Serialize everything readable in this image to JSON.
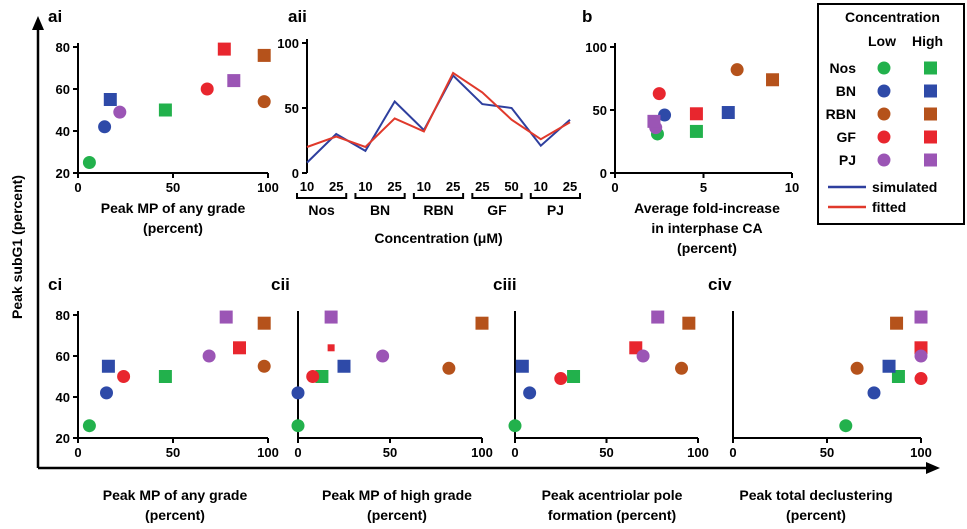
{
  "figure": {
    "ylabel": "Peak subG1 (percent)",
    "legend": {
      "title": "Concentration",
      "col_low": "Low",
      "col_high": "High",
      "drugs": [
        "Nos",
        "BN",
        "RBN",
        "GF",
        "PJ"
      ],
      "lines": [
        {
          "name": "simulated",
          "color": "#2e3f9e"
        },
        {
          "name": "fitted",
          "color": "#e0392b"
        }
      ]
    },
    "drug_colors": {
      "Nos": "#22b14c",
      "BN": "#2e4aa8",
      "RBN": "#b5521b",
      "GF": "#e8262e",
      "PJ": "#9b55b5"
    },
    "markers": {
      "low": "circle",
      "high": "square"
    }
  },
  "chart_data": [
    {
      "id": "ai",
      "panel_label": "ai",
      "type": "scatter",
      "xlabel_lines": [
        "Peak MP of any grade",
        "(percent)"
      ],
      "xlim": [
        0,
        100
      ],
      "ylim": [
        20,
        80
      ],
      "xticks": [
        0,
        50,
        100
      ],
      "yticks": [
        20,
        40,
        60,
        80
      ],
      "points": [
        {
          "drug": "Nos",
          "level": "low",
          "x": 6,
          "y": 25
        },
        {
          "drug": "Nos",
          "level": "high",
          "x": 46,
          "y": 50
        },
        {
          "drug": "BN",
          "level": "low",
          "x": 14,
          "y": 42
        },
        {
          "drug": "BN",
          "level": "high",
          "x": 17,
          "y": 55
        },
        {
          "drug": "RBN",
          "level": "low",
          "x": 98,
          "y": 54
        },
        {
          "drug": "RBN",
          "level": "high",
          "x": 98,
          "y": 76
        },
        {
          "drug": "GF",
          "level": "low",
          "x": 68,
          "y": 60
        },
        {
          "drug": "GF",
          "level": "high",
          "x": 77,
          "y": 79
        },
        {
          "drug": "PJ",
          "level": "low",
          "x": 22,
          "y": 49
        },
        {
          "drug": "PJ",
          "level": "high",
          "x": 82,
          "y": 64
        }
      ]
    },
    {
      "id": "aii",
      "panel_label": "aii",
      "type": "line",
      "xlabel": "Concentration (μM)",
      "ylim": [
        0,
        100
      ],
      "yticks": [
        0,
        50,
        100
      ],
      "categories": [
        "10",
        "25",
        "10",
        "25",
        "10",
        "25",
        "25",
        "50",
        "10",
        "25"
      ],
      "groups": [
        {
          "label": "Nos",
          "span": [
            0,
            1
          ]
        },
        {
          "label": "BN",
          "span": [
            2,
            3
          ]
        },
        {
          "label": "RBN",
          "span": [
            4,
            5
          ]
        },
        {
          "label": "GF",
          "span": [
            6,
            7
          ]
        },
        {
          "label": "PJ",
          "span": [
            8,
            9
          ]
        }
      ],
      "series": [
        {
          "name": "simulated",
          "color": "#2e3f9e",
          "values": [
            8,
            30,
            17,
            55,
            33,
            75,
            53,
            50,
            21,
            41
          ]
        },
        {
          "name": "fitted",
          "color": "#e0392b",
          "values": [
            20,
            28,
            20,
            42,
            32,
            77,
            62,
            41,
            26,
            39
          ]
        }
      ]
    },
    {
      "id": "b",
      "panel_label": "b",
      "type": "scatter",
      "xlabel_lines": [
        "Average fold-increase",
        "in interphase CA",
        "(percent)"
      ],
      "xlim": [
        0,
        10
      ],
      "ylim": [
        0,
        100
      ],
      "xticks": [
        0,
        5,
        10
      ],
      "yticks": [
        0,
        50,
        100
      ],
      "points": [
        {
          "drug": "Nos",
          "level": "low",
          "x": 2.4,
          "y": 31
        },
        {
          "drug": "Nos",
          "level": "high",
          "x": 4.6,
          "y": 33
        },
        {
          "drug": "BN",
          "level": "low",
          "x": 2.8,
          "y": 46
        },
        {
          "drug": "BN",
          "level": "high",
          "x": 6.4,
          "y": 48
        },
        {
          "drug": "RBN",
          "level": "low",
          "x": 6.9,
          "y": 82
        },
        {
          "drug": "RBN",
          "level": "high",
          "x": 8.9,
          "y": 74
        },
        {
          "drug": "GF",
          "level": "low",
          "x": 2.5,
          "y": 63
        },
        {
          "drug": "GF",
          "level": "high",
          "x": 4.6,
          "y": 47
        },
        {
          "drug": "PJ",
          "level": "low",
          "x": 2.3,
          "y": 36
        },
        {
          "drug": "PJ",
          "level": "high",
          "x": 2.2,
          "y": 41
        }
      ]
    },
    {
      "id": "ci",
      "panel_label": "ci",
      "type": "scatter",
      "xlabel_lines": [
        "Peak MP of any grade",
        "(percent)"
      ],
      "xlim": [
        0,
        100
      ],
      "ylim": [
        20,
        80
      ],
      "xticks": [
        0,
        50,
        100
      ],
      "yticks": [
        20,
        40,
        60,
        80
      ],
      "points": [
        {
          "drug": "Nos",
          "level": "low",
          "x": 6,
          "y": 26
        },
        {
          "drug": "Nos",
          "level": "high",
          "x": 46,
          "y": 50
        },
        {
          "drug": "BN",
          "level": "low",
          "x": 15,
          "y": 42
        },
        {
          "drug": "BN",
          "level": "high",
          "x": 16,
          "y": 55
        },
        {
          "drug": "RBN",
          "level": "low",
          "x": 98,
          "y": 55
        },
        {
          "drug": "RBN",
          "level": "high",
          "x": 98,
          "y": 76
        },
        {
          "drug": "GF",
          "level": "low",
          "x": 24,
          "y": 50
        },
        {
          "drug": "GF",
          "level": "high",
          "x": 85,
          "y": 64
        },
        {
          "drug": "PJ",
          "level": "low",
          "x": 69,
          "y": 60
        },
        {
          "drug": "PJ",
          "level": "high",
          "x": 78,
          "y": 79
        }
      ]
    },
    {
      "id": "cii",
      "panel_label": "cii",
      "type": "scatter",
      "xlabel_lines": [
        "Peak MP of high grade",
        "(percent)"
      ],
      "xlim": [
        0,
        100
      ],
      "ylim": [
        20,
        80
      ],
      "xticks": [
        0,
        50,
        100
      ],
      "points": [
        {
          "drug": "Nos",
          "level": "low",
          "x": 0,
          "y": 26
        },
        {
          "drug": "Nos",
          "level": "high",
          "x": 13,
          "y": 50
        },
        {
          "drug": "BN",
          "level": "low",
          "x": 0,
          "y": 42
        },
        {
          "drug": "BN",
          "level": "high",
          "x": 25,
          "y": 55
        },
        {
          "drug": "RBN",
          "level": "low",
          "x": 82,
          "y": 54
        },
        {
          "drug": "RBN",
          "level": "high",
          "x": 100,
          "y": 76
        },
        {
          "drug": "GF",
          "level": "low",
          "x": 8,
          "y": 50
        },
        {
          "drug": "GF",
          "level": "high",
          "x": 18,
          "y": 64,
          "small": true
        },
        {
          "drug": "PJ",
          "level": "low",
          "x": 46,
          "y": 60
        },
        {
          "drug": "PJ",
          "level": "high",
          "x": 18,
          "y": 79
        }
      ]
    },
    {
      "id": "ciii",
      "panel_label": "ciii",
      "type": "scatter",
      "xlabel_lines": [
        "Peak acentriolar pole",
        "formation (percent)"
      ],
      "xlim": [
        0,
        100
      ],
      "ylim": [
        20,
        80
      ],
      "xticks": [
        0,
        50,
        100
      ],
      "points": [
        {
          "drug": "Nos",
          "level": "low",
          "x": 0,
          "y": 26
        },
        {
          "drug": "Nos",
          "level": "high",
          "x": 32,
          "y": 50
        },
        {
          "drug": "BN",
          "level": "low",
          "x": 8,
          "y": 42
        },
        {
          "drug": "BN",
          "level": "high",
          "x": 4,
          "y": 55
        },
        {
          "drug": "RBN",
          "level": "low",
          "x": 91,
          "y": 54
        },
        {
          "drug": "RBN",
          "level": "high",
          "x": 95,
          "y": 76
        },
        {
          "drug": "GF",
          "level": "low",
          "x": 25,
          "y": 49
        },
        {
          "drug": "GF",
          "level": "high",
          "x": 66,
          "y": 64
        },
        {
          "drug": "PJ",
          "level": "low",
          "x": 70,
          "y": 60
        },
        {
          "drug": "PJ",
          "level": "high",
          "x": 78,
          "y": 79
        }
      ]
    },
    {
      "id": "civ",
      "panel_label": "civ",
      "type": "scatter",
      "xlabel_lines": [
        "Peak total declustering",
        "(percent)"
      ],
      "xlim": [
        0,
        100
      ],
      "ylim": [
        20,
        80
      ],
      "xticks": [
        0,
        50,
        100
      ],
      "points": [
        {
          "drug": "Nos",
          "level": "low",
          "x": 60,
          "y": 26
        },
        {
          "drug": "Nos",
          "level": "high",
          "x": 88,
          "y": 50
        },
        {
          "drug": "BN",
          "level": "low",
          "x": 75,
          "y": 42
        },
        {
          "drug": "BN",
          "level": "high",
          "x": 83,
          "y": 55
        },
        {
          "drug": "RBN",
          "level": "low",
          "x": 66,
          "y": 54
        },
        {
          "drug": "RBN",
          "level": "high",
          "x": 87,
          "y": 76
        },
        {
          "drug": "GF",
          "level": "low",
          "x": 100,
          "y": 49
        },
        {
          "drug": "GF",
          "level": "high",
          "x": 100,
          "y": 64
        },
        {
          "drug": "PJ",
          "level": "low",
          "x": 100,
          "y": 60
        },
        {
          "drug": "PJ",
          "level": "high",
          "x": 100,
          "y": 79
        }
      ]
    }
  ]
}
